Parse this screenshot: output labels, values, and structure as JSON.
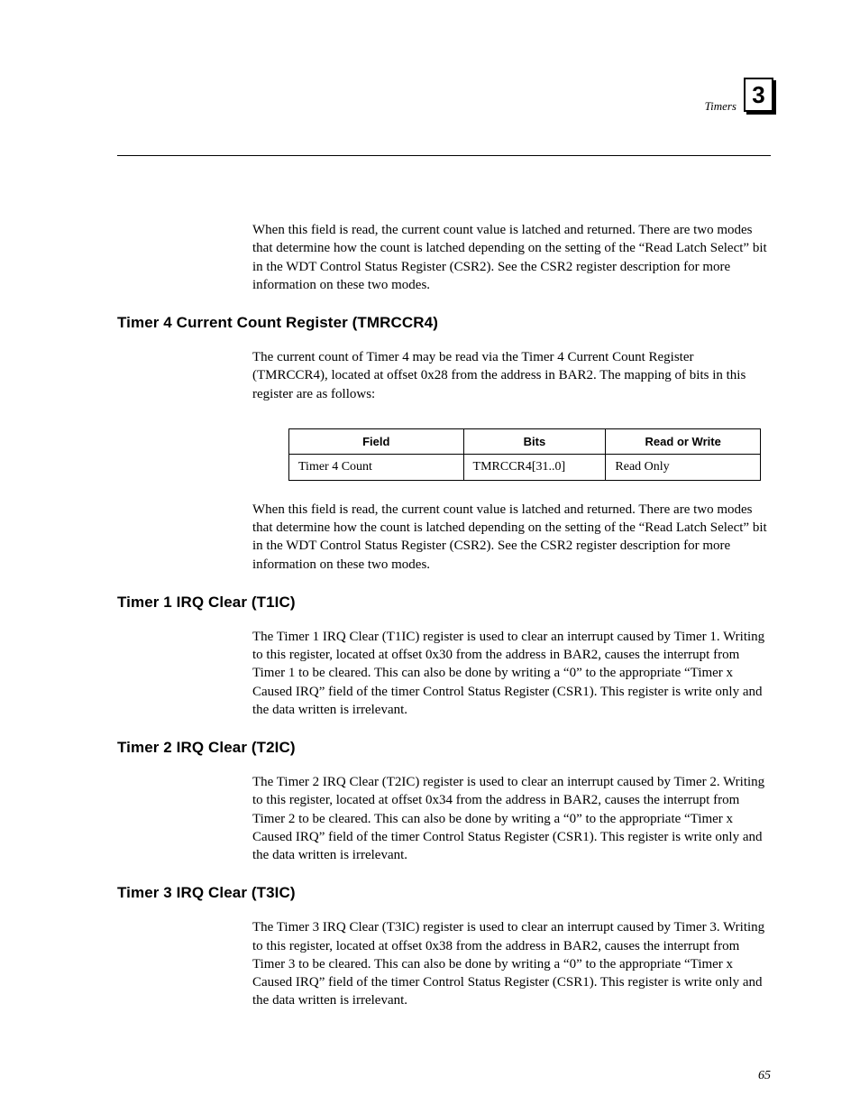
{
  "header": {
    "section_label": "Timers",
    "chapter_number": "3"
  },
  "intro_para": "When this  field is read, the current count value is latched and returned.  There are two modes that determine how the count is latched depending on the setting of the “Read Latch Select” bit in the WDT Control Status Register (CSR2).  See the CSR2 register description for more information on these two modes.",
  "sections": {
    "tmrccr4": {
      "heading": "Timer 4 Current Count Register (TMRCCR4)",
      "para1": "The current count of Timer 4 may be read via the Timer 4 Current Count Register (TMRCCR4), located at offset 0x28 from the address in BAR2.  The mapping of bits in this register are as follows:",
      "table": {
        "columns": {
          "field": "Field",
          "bits": "Bits",
          "rw": "Read or Write"
        },
        "row": {
          "field": "Timer 4 Count",
          "bits": "TMRCCR4[31..0]",
          "rw": "Read Only"
        }
      },
      "para2": "When this  field is read, the current count value is latched and returned.  There are two modes that determine how the count is latched depending on the setting of the “Read Latch Select” bit in the WDT Control Status Register (CSR2).  See the CSR2 register description for more information on these two modes."
    },
    "t1ic": {
      "heading": "Timer 1 IRQ Clear (T1IC)",
      "para": "The Timer 1 IRQ Clear (T1IC) register is used to clear an interrupt caused by Timer 1.  Writing to this register, located at offset 0x30 from the address in BAR2, causes the interrupt from Timer 1 to be cleared.  This can also be done by writing a “0” to the appropriate “Timer x Caused IRQ” field of the timer Control Status Register (CSR1).  This register is write only and the data written is irrelevant."
    },
    "t2ic": {
      "heading": "Timer 2 IRQ Clear (T2IC)",
      "para": "The Timer 2 IRQ Clear (T2IC) register is used to clear an interrupt caused by Timer 2.  Writing to this register, located at offset 0x34 from the address in BAR2, causes the interrupt from Timer 2 to be cleared.  This can also be done by writing a “0” to the appropriate “Timer x Caused IRQ” field of the timer Control Status Register (CSR1).  This register is write only and the data written is irrelevant."
    },
    "t3ic": {
      "heading": "Timer 3 IRQ Clear (T3IC)",
      "para": "The Timer 3 IRQ Clear (T3IC) register is used to clear an interrupt caused by Timer 3.  Writing to this register, located at offset 0x38 from the address in BAR2, causes the interrupt from Timer 3 to be cleared.  This can also be done by writing a “0” to the appropriate “Timer x Caused IRQ” field of the timer Control Status Register (CSR1).  This register is write only and the data written is irrelevant."
    }
  },
  "page_number": "65"
}
